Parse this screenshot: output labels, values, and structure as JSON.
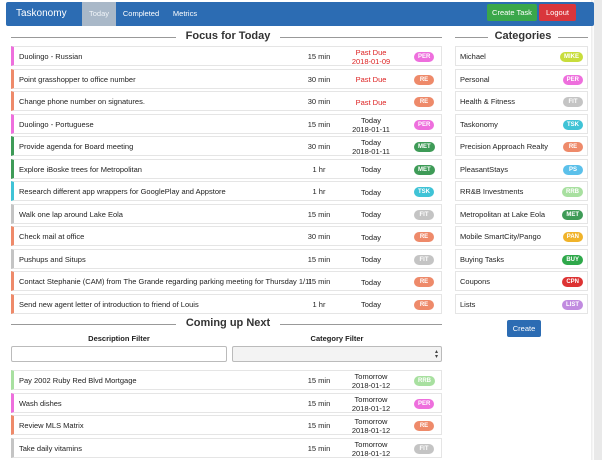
{
  "nav": {
    "brand": "Taskonomy",
    "tabs": [
      {
        "label": "Today",
        "active": true
      },
      {
        "label": "Completed",
        "active": false
      },
      {
        "label": "Metrics",
        "active": false
      }
    ],
    "create_task": "Create Task",
    "logout": "Logout"
  },
  "focus": {
    "title": "Focus for Today",
    "tasks": [
      {
        "desc": "Duolingo - Russian",
        "dur": "15 min",
        "due1": "Past Due",
        "due2": "2018-01-09",
        "overdue": true,
        "badge": "PER",
        "color": "#ee6fdd"
      },
      {
        "desc": "Point grasshopper to office number",
        "dur": "30 min",
        "due1": "Past Due",
        "due2": "",
        "overdue": true,
        "badge": "RE",
        "color": "#ee8a6a"
      },
      {
        "desc": "Change phone number on signatures.",
        "dur": "30 min",
        "due1": "Past Due",
        "due2": "",
        "overdue": true,
        "badge": "RE",
        "color": "#ee8a6a"
      },
      {
        "desc": "Duolingo - Portuguese",
        "dur": "15 min",
        "due1": "Today",
        "due2": "2018-01-11",
        "overdue": false,
        "badge": "PER",
        "color": "#ee6fdd"
      },
      {
        "desc": "Provide agenda for Board meeting",
        "dur": "30 min",
        "due1": "Today",
        "due2": "2018-01-11",
        "overdue": false,
        "badge": "MET",
        "color": "#3e9b57"
      },
      {
        "desc": "Explore iBoske trees for Metropolitan",
        "dur": "1 hr",
        "due1": "Today",
        "due2": "",
        "overdue": false,
        "badge": "MET",
        "color": "#3e9b57"
      },
      {
        "desc": "Research different app wrappers for GooglePlay and Appstore",
        "dur": "1 hr",
        "due1": "Today",
        "due2": "",
        "overdue": false,
        "badge": "TSK",
        "color": "#3fc3d6"
      },
      {
        "desc": "Walk one lap around Lake Eola",
        "dur": "15 min",
        "due1": "Today",
        "due2": "",
        "overdue": false,
        "badge": "FIT",
        "color": "#c4c4c4"
      },
      {
        "desc": "Check mail at office",
        "dur": "30 min",
        "due1": "Today",
        "due2": "",
        "overdue": false,
        "badge": "RE",
        "color": "#ee8a6a"
      },
      {
        "desc": "Pushups and Situps",
        "dur": "15 min",
        "due1": "Today",
        "due2": "",
        "overdue": false,
        "badge": "FIT",
        "color": "#c4c4c4"
      },
      {
        "desc": "Contact Stephanie (CAM) from The Grande regarding parking meeting for Thursday 1/11",
        "dur": "15 min",
        "due1": "Today",
        "due2": "",
        "overdue": false,
        "badge": "RE",
        "color": "#ee8a6a"
      },
      {
        "desc": "Send new agent letter of introduction to friend of Louis",
        "dur": "1 hr",
        "due1": "Today",
        "due2": "",
        "overdue": false,
        "badge": "RE",
        "color": "#ee8a6a"
      }
    ]
  },
  "categories": {
    "title": "Categories",
    "items": [
      {
        "name": "Michael",
        "badge": "MIKE",
        "color": "#c8dd3c"
      },
      {
        "name": "Personal",
        "badge": "PER",
        "color": "#ee6fdd"
      },
      {
        "name": "Health & Fitness",
        "badge": "FIT",
        "color": "#c4c4c4"
      },
      {
        "name": "Taskonomy",
        "badge": "TSK",
        "color": "#3fc3d6"
      },
      {
        "name": "Precision Approach Realty",
        "badge": "RE",
        "color": "#ee8a6a"
      },
      {
        "name": "PleasantStays",
        "badge": "PS",
        "color": "#5bc0ea"
      },
      {
        "name": "RR&B Investments",
        "badge": "RRB",
        "color": "#a8e0a0"
      },
      {
        "name": "Metropolitan at Lake Eola",
        "badge": "MET",
        "color": "#3e9b57"
      },
      {
        "name": "Mobile SmartCity/Pango",
        "badge": "PAN",
        "color": "#f0b32a"
      },
      {
        "name": "Buying Tasks",
        "badge": "BUY",
        "color": "#2ea84a"
      },
      {
        "name": "Coupons",
        "badge": "CPN",
        "color": "#dd3333"
      },
      {
        "name": "Lists",
        "badge": "LIST",
        "color": "#c18be0"
      }
    ],
    "create": "Create"
  },
  "upcoming": {
    "title": "Coming up Next",
    "desc_filter_label": "Description Filter",
    "cat_filter_label": "Category Filter",
    "tasks": [
      {
        "desc": "Pay 2002 Ruby Red Blvd Mortgage",
        "dur": "15 min",
        "due1": "Tomorrow",
        "due2": "2018-01-12",
        "badge": "RRB",
        "color": "#a8e0a0"
      },
      {
        "desc": "Wash dishes",
        "dur": "15 min",
        "due1": "Tomorrow",
        "due2": "2018-01-12",
        "badge": "PER",
        "color": "#ee6fdd"
      },
      {
        "desc": "Review MLS Matrix",
        "dur": "15 min",
        "due1": "Tomorrow",
        "due2": "2018-01-12",
        "badge": "RE",
        "color": "#ee8a6a"
      },
      {
        "desc": "Take daily vitamins",
        "dur": "15 min",
        "due1": "Tomorrow",
        "due2": "2018-01-12",
        "badge": "FIT",
        "color": "#c4c4c4"
      }
    ]
  }
}
